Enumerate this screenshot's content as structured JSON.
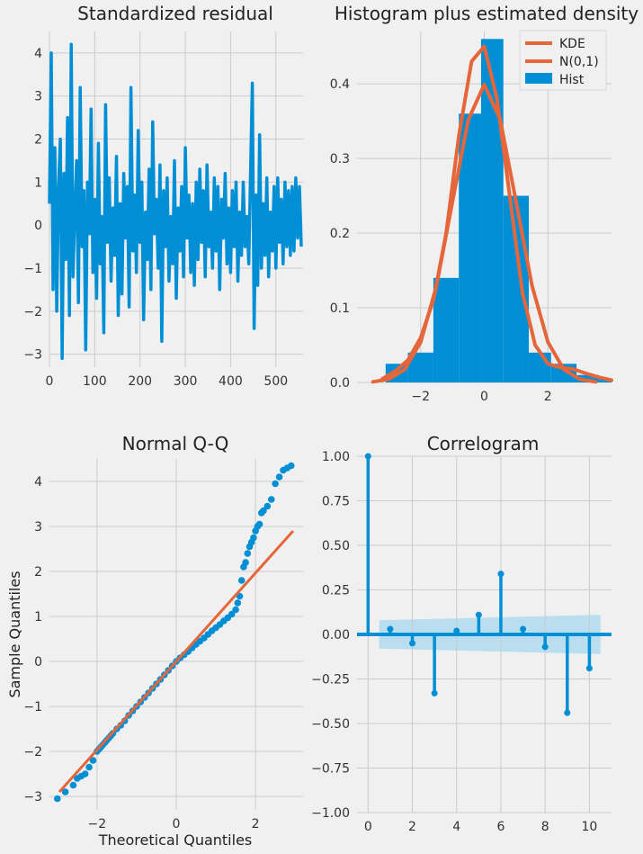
{
  "colors": {
    "blue": "#008fd5",
    "orange": "#e5663a",
    "background": "#f0f0f0",
    "grid": "#cbcbcb",
    "band": "#a6d8ef"
  },
  "chart_data": [
    {
      "type": "line",
      "title": "Standardized residual",
      "xlim": [
        0,
        560
      ],
      "ylim": [
        -3.3,
        4.5
      ],
      "xticks": [
        0,
        100,
        200,
        300,
        400,
        500
      ],
      "yticks": [
        -3,
        -2,
        -1,
        0,
        1,
        2,
        3,
        4
      ],
      "grid": true,
      "series": [
        {
          "color": "#008fd5",
          "x": [
            0,
            4,
            8,
            12,
            16,
            20,
            24,
            28,
            32,
            36,
            40,
            44,
            48,
            52,
            56,
            60,
            64,
            68,
            72,
            76,
            80,
            84,
            88,
            92,
            96,
            100,
            104,
            108,
            112,
            116,
            120,
            124,
            128,
            132,
            136,
            140,
            144,
            148,
            152,
            156,
            160,
            164,
            168,
            172,
            176,
            180,
            184,
            188,
            192,
            196,
            200,
            204,
            208,
            212,
            216,
            220,
            224,
            228,
            232,
            236,
            240,
            244,
            248,
            252,
            256,
            260,
            264,
            268,
            272,
            276,
            280,
            284,
            288,
            292,
            296,
            300,
            304,
            308,
            312,
            316,
            320,
            324,
            328,
            332,
            336,
            340,
            344,
            348,
            352,
            356,
            360,
            364,
            368,
            372,
            376,
            380,
            384,
            388,
            392,
            396,
            400,
            404,
            408,
            412,
            416,
            420,
            424,
            428,
            432,
            436,
            440,
            444,
            448,
            452,
            456,
            460,
            464,
            468,
            472,
            476,
            480,
            484,
            488,
            492,
            496,
            500,
            504,
            508,
            512,
            516,
            520,
            524,
            528,
            532,
            536,
            540,
            544,
            548,
            552,
            556
          ],
          "y": [
            0.5,
            4.0,
            -1.5,
            1.8,
            -2.0,
            0.9,
            2.0,
            -3.1,
            1.2,
            -0.8,
            2.5,
            -2.1,
            4.2,
            -1.2,
            0.3,
            1.5,
            -1.8,
            3.2,
            -0.5,
            0.8,
            -2.9,
            1.0,
            -0.2,
            2.7,
            -1.1,
            0.6,
            -1.7,
            1.9,
            -0.9,
            0.2,
            -2.5,
            2.8,
            -0.4,
            1.1,
            -1.3,
            0.4,
            -0.7,
            1.6,
            -2.1,
            0.5,
            -1.6,
            1.2,
            -0.3,
            0.9,
            -1.9,
            3.2,
            -0.6,
            0.7,
            -1.1,
            2.2,
            -0.4,
            1.0,
            -2.2,
            0.3,
            -0.8,
            1.3,
            -1.5,
            2.4,
            -0.2,
            0.6,
            -1.0,
            1.4,
            -2.7,
            0.8,
            -0.5,
            1.1,
            -1.3,
            0.2,
            -0.9,
            1.5,
            -1.7,
            0.4,
            -0.6,
            0.9,
            -1.2,
            1.8,
            -0.3,
            0.7,
            -1.1,
            0.5,
            -1.4,
            1.0,
            -0.8,
            1.3,
            -0.4,
            0.8,
            -1.2,
            1.4,
            -0.5,
            0.3,
            -1.0,
            1.1,
            -0.6,
            0.9,
            -1.5,
            0.6,
            -0.3,
            1.2,
            -0.9,
            0.4,
            -1.1,
            0.8,
            -0.5,
            1.0,
            -1.3,
            0.3,
            -0.7,
            1.0,
            -0.5,
            0.2,
            -0.9,
            1.2,
            3.3,
            -2.4,
            0.7,
            -1.4,
            2.1,
            -1.0,
            0.5,
            -0.7,
            1.1,
            -1.2,
            0.3,
            -0.6,
            0.9,
            -1.0,
            1.1,
            -0.4,
            0.6,
            -0.9,
            1.0,
            -0.5,
            0.8,
            -0.7,
            0.9,
            -0.6,
            1.1,
            -0.3,
            0.9,
            -0.5
          ]
        }
      ]
    },
    {
      "type": "bar",
      "title": "Histogram plus estimated density",
      "xlim": [
        -4.0,
        4.0
      ],
      "ylim": [
        0,
        0.47
      ],
      "xticks": [
        -2,
        0,
        2
      ],
      "yticks": [
        0.0,
        0.1,
        0.2,
        0.3,
        0.4
      ],
      "grid": true,
      "legend": {
        "placement": "top-right",
        "entries": [
          "KDE",
          "N(0,1)",
          "Hist"
        ]
      },
      "bins": {
        "edges": [
          -3.1,
          -2.4,
          -1.6,
          -0.8,
          -0.1,
          0.6,
          1.4,
          2.1,
          2.9,
          3.6,
          4.3
        ],
        "values": [
          0.025,
          0.04,
          0.14,
          0.36,
          0.46,
          0.25,
          0.04,
          0.025,
          0.01,
          0.005
        ]
      },
      "series": [
        {
          "name": "KDE",
          "color": "#e5663a",
          "x": [
            -3.2,
            -2.8,
            -2.4,
            -2.0,
            -1.6,
            -1.2,
            -0.8,
            -0.4,
            0.0,
            0.4,
            0.8,
            1.2,
            1.6,
            2.0,
            2.4,
            2.8,
            3.2,
            3.6,
            4.0
          ],
          "y": [
            0.005,
            0.015,
            0.03,
            0.06,
            0.11,
            0.2,
            0.33,
            0.43,
            0.45,
            0.38,
            0.25,
            0.12,
            0.05,
            0.025,
            0.02,
            0.018,
            0.012,
            0.007,
            0.003
          ]
        },
        {
          "name": "N(0,1)",
          "color": "#e5663a",
          "x": [
            -3.5,
            -3.0,
            -2.5,
            -2.0,
            -1.5,
            -1.0,
            -0.5,
            0.0,
            0.5,
            1.0,
            1.5,
            2.0,
            2.5,
            3.0,
            3.5
          ],
          "y": [
            0.0009,
            0.0044,
            0.0175,
            0.054,
            0.1295,
            0.242,
            0.352,
            0.399,
            0.352,
            0.242,
            0.1295,
            0.054,
            0.0175,
            0.0044,
            0.0009
          ]
        }
      ]
    },
    {
      "type": "scatter",
      "title": "Normal Q-Q",
      "xlabel": "Theoretical Quantiles",
      "ylabel": "Sample Quantiles",
      "xlim": [
        -3.2,
        3.2
      ],
      "ylim": [
        -3.3,
        4.5
      ],
      "xticks": [
        -2,
        0,
        2
      ],
      "yticks": [
        -3,
        -2,
        -1,
        0,
        1,
        2,
        3,
        4
      ],
      "grid": true,
      "reference_line": {
        "color": "#e5663a",
        "x": [
          -2.95,
          2.95
        ],
        "y": [
          -2.9,
          2.9
        ]
      },
      "series": [
        {
          "color": "#008fd5",
          "x": [
            -3.0,
            -2.8,
            -2.6,
            -2.5,
            -2.4,
            -2.3,
            -2.2,
            -2.1,
            -2.0,
            -1.95,
            -1.9,
            -1.85,
            -1.8,
            -1.75,
            -1.7,
            -1.65,
            -1.6,
            -1.5,
            -1.4,
            -1.3,
            -1.2,
            -1.1,
            -1.0,
            -0.9,
            -0.8,
            -0.7,
            -0.6,
            -0.5,
            -0.4,
            -0.3,
            -0.2,
            -0.1,
            0.0,
            0.1,
            0.2,
            0.3,
            0.4,
            0.5,
            0.6,
            0.7,
            0.8,
            0.9,
            1.0,
            1.1,
            1.2,
            1.3,
            1.4,
            1.5,
            1.55,
            1.6,
            1.65,
            1.7,
            1.75,
            1.8,
            1.85,
            1.9,
            1.95,
            2.0,
            2.05,
            2.1,
            2.15,
            2.2,
            2.3,
            2.4,
            2.5,
            2.6,
            2.7,
            2.8,
            2.9
          ],
          "y": [
            -3.05,
            -2.9,
            -2.75,
            -2.6,
            -2.55,
            -2.5,
            -2.35,
            -2.2,
            -2.0,
            -1.95,
            -1.9,
            -1.85,
            -1.8,
            -1.75,
            -1.7,
            -1.65,
            -1.6,
            -1.5,
            -1.42,
            -1.32,
            -1.2,
            -1.1,
            -1.0,
            -0.9,
            -0.8,
            -0.7,
            -0.6,
            -0.5,
            -0.4,
            -0.3,
            -0.2,
            -0.1,
            0.0,
            0.08,
            0.15,
            0.22,
            0.3,
            0.38,
            0.45,
            0.52,
            0.6,
            0.68,
            0.75,
            0.82,
            0.9,
            0.97,
            1.05,
            1.15,
            1.3,
            1.45,
            1.8,
            2.1,
            2.2,
            2.4,
            2.55,
            2.65,
            2.75,
            2.9,
            3.0,
            3.05,
            3.3,
            3.35,
            3.45,
            3.6,
            3.95,
            4.1,
            4.25,
            4.3,
            4.35
          ]
        }
      ]
    },
    {
      "type": "bar",
      "title": "Correlogram",
      "xlim": [
        -0.5,
        11.0
      ],
      "ylim": [
        -1.0,
        1.0
      ],
      "xticks": [
        0,
        2,
        4,
        6,
        8,
        10
      ],
      "yticks": [
        -1.0,
        -0.75,
        -0.5,
        -0.25,
        0.0,
        0.25,
        0.5,
        0.75,
        1.0
      ],
      "ytick_labels": [
        "−1.00",
        "−0.75",
        "−0.50",
        "−0.25",
        "0.00",
        "0.25",
        "0.50",
        "0.75",
        "1.00"
      ],
      "grid": true,
      "categories": [
        0,
        1,
        2,
        3,
        4,
        5,
        6,
        7,
        8,
        9,
        10
      ],
      "values": [
        1.0,
        0.03,
        -0.05,
        -0.33,
        0.02,
        0.11,
        0.34,
        0.03,
        -0.07,
        -0.44,
        -0.19
      ],
      "confidence_band": {
        "x": [
          0.5,
          10.5
        ],
        "upper": [
          0.08,
          0.11
        ],
        "lower": [
          -0.08,
          -0.11
        ]
      }
    }
  ]
}
